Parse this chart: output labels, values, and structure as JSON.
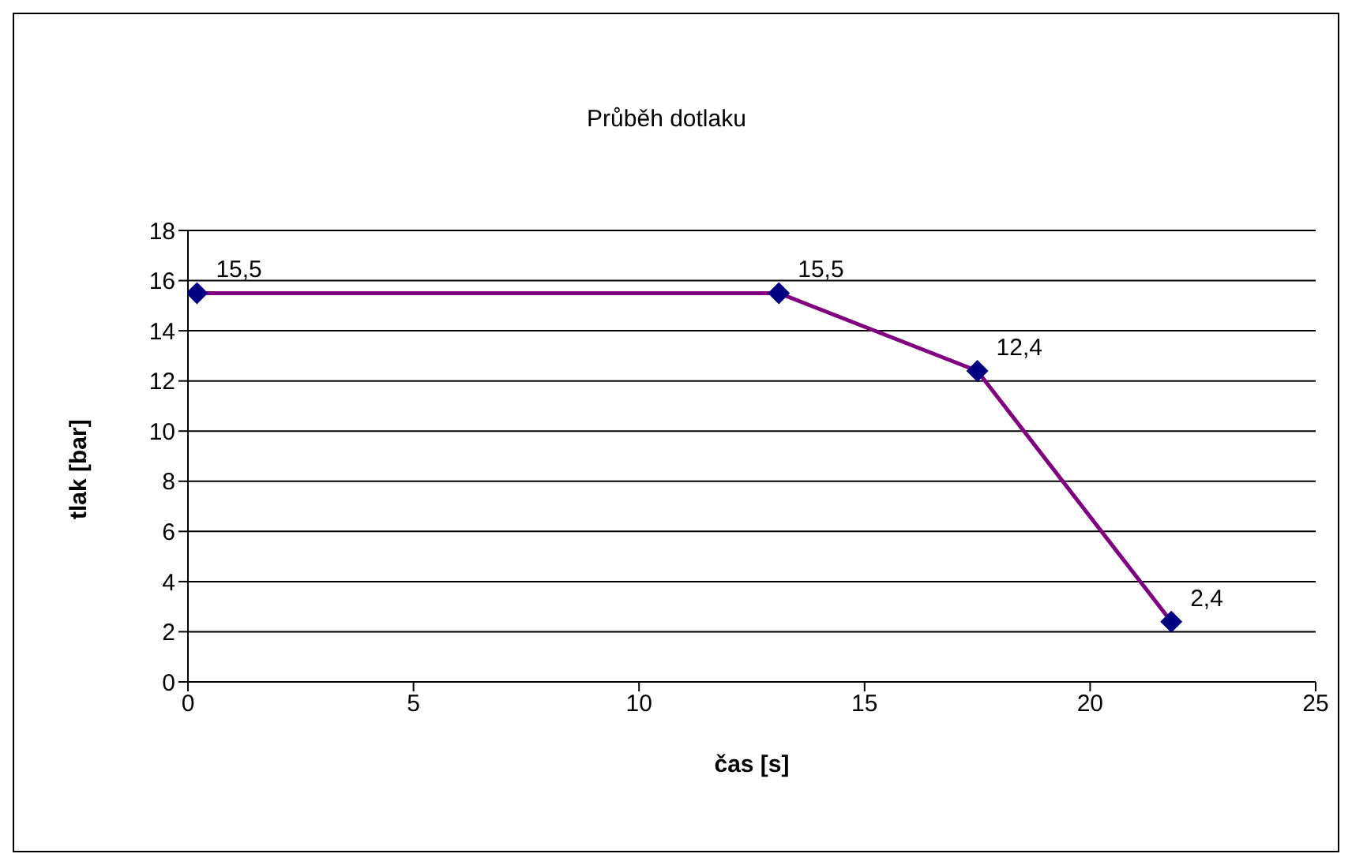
{
  "chart_data": {
    "type": "line",
    "title": "Průběh dotlaku",
    "xlabel": "čas [s]",
    "ylabel": "tlak [bar]",
    "x": [
      0.2,
      13.1,
      17.5,
      21.8
    ],
    "series": [
      {
        "color": "#800080",
        "colors": [
          "#000080",
          "#000080",
          "#000080",
          "#000080"
        ],
        "values": [
          15.5,
          15.5,
          12.4,
          2.4
        ],
        "value_labels": [
          "15,5",
          "15,5",
          "12,4",
          "2,4"
        ]
      }
    ],
    "xlim": [
      0,
      25
    ],
    "xticks": [
      0,
      5,
      10,
      15,
      20,
      25
    ],
    "ylim": [
      0,
      18
    ],
    "yticks": [
      0,
      2,
      4,
      6,
      8,
      10,
      12,
      14,
      16,
      18
    ],
    "grid": "y",
    "marker": "diamond",
    "line_style": "solid"
  }
}
